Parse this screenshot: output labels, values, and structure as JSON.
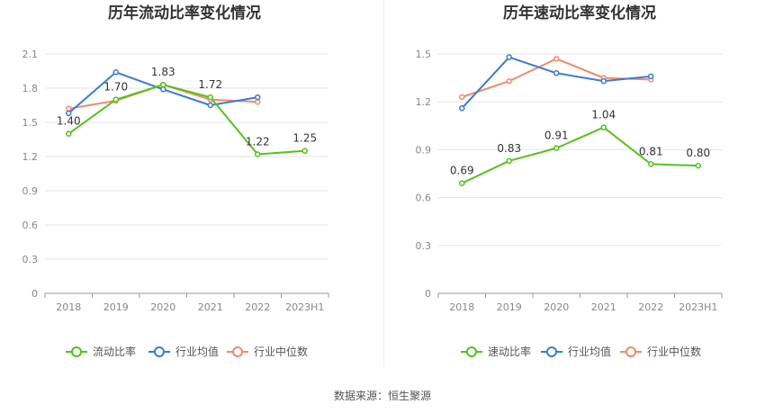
{
  "footer": {
    "source": "数据来源：恒生聚源"
  },
  "chart_data": [
    {
      "type": "line",
      "title": "历年流动比率变化情况",
      "categories": [
        "2018",
        "2019",
        "2020",
        "2021",
        "2022",
        "2023H1"
      ],
      "ylim": [
        0,
        2.1
      ],
      "yticks": [
        "0",
        "0.3",
        "0.6",
        "0.9",
        "1.2",
        "1.5",
        "1.8",
        "2.1"
      ],
      "grid": true,
      "legend_position": "bottom",
      "series": [
        {
          "name": "流动比率",
          "color": "#52c41a",
          "labeled": true,
          "values": [
            1.4,
            1.7,
            1.83,
            1.72,
            1.22,
            1.25
          ],
          "labels": [
            "1.40",
            "1.70",
            "1.83",
            "1.72",
            "1.22",
            "1.25"
          ]
        },
        {
          "name": "行业均值",
          "color": "#3a7bd5",
          "labeled": false,
          "values": [
            1.58,
            1.94,
            1.79,
            1.65,
            1.72,
            null
          ]
        },
        {
          "name": "行业中位数",
          "color": "#f5896b",
          "labeled": false,
          "values": [
            1.62,
            1.69,
            1.83,
            1.7,
            1.68,
            null
          ]
        }
      ]
    },
    {
      "type": "line",
      "title": "历年速动比率变化情况",
      "categories": [
        "2018",
        "2019",
        "2020",
        "2021",
        "2022",
        "2023H1"
      ],
      "ylim": [
        0,
        1.5
      ],
      "yticks": [
        "0",
        "0.3",
        "0.6",
        "0.9",
        "1.2",
        "1.5"
      ],
      "grid": true,
      "legend_position": "bottom",
      "series": [
        {
          "name": "速动比率",
          "color": "#52c41a",
          "labeled": true,
          "values": [
            0.69,
            0.83,
            0.91,
            1.04,
            0.81,
            0.8
          ],
          "labels": [
            "0.69",
            "0.83",
            "0.91",
            "1.04",
            "0.81",
            "0.80"
          ]
        },
        {
          "name": "行业均值",
          "color": "#3a7bd5",
          "labeled": false,
          "values": [
            1.16,
            1.48,
            1.38,
            1.33,
            1.36,
            null
          ]
        },
        {
          "name": "行业中位数",
          "color": "#f5896b",
          "labeled": false,
          "values": [
            1.23,
            1.33,
            1.47,
            1.35,
            1.34,
            null
          ]
        }
      ]
    }
  ]
}
